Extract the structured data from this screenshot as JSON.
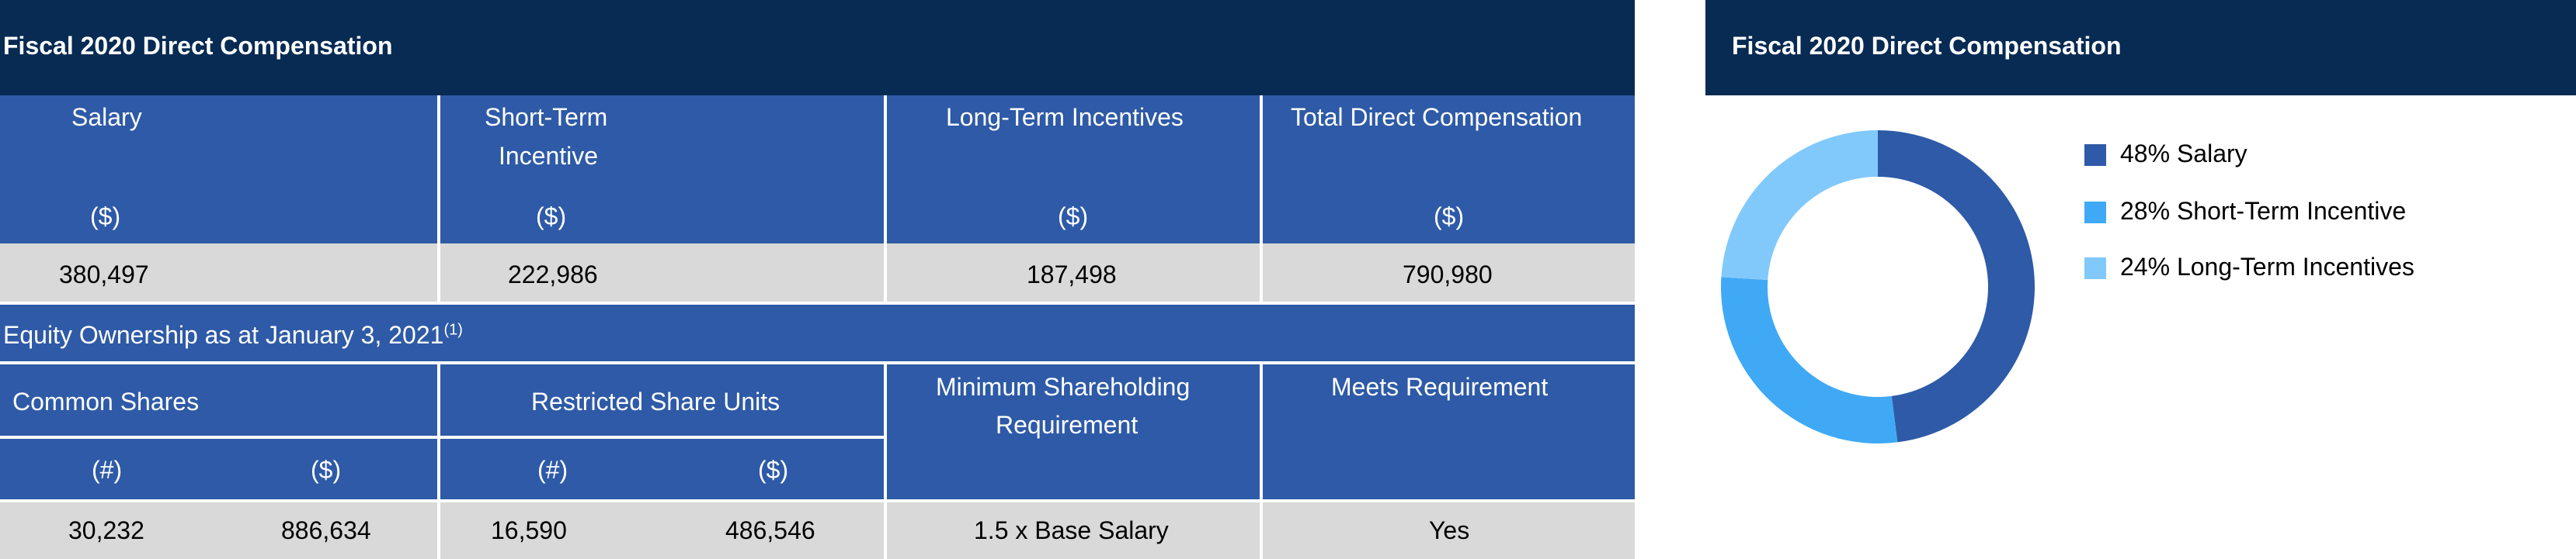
{
  "comp_table": {
    "title": "Fiscal 2020 Direct Compensation",
    "headers": [
      {
        "label": "Salary",
        "unit": "($)"
      },
      {
        "label_line1": "Short-Term",
        "label_line2": "Incentive",
        "unit": "($)"
      },
      {
        "label": "Long-Term Incentives",
        "unit": "($)"
      },
      {
        "label": "Total Direct Compensation",
        "unit": "($)"
      }
    ],
    "values": [
      "380,497",
      "222,986",
      "187,498",
      "790,980"
    ]
  },
  "equity_table": {
    "title": "Equity Ownership as at January 3, 2021",
    "title_footnote": "(1)",
    "group_headers": {
      "common_shares": "Common Shares",
      "restricted_share_units": "Restricted Share Units",
      "min_shareholding_line1": "Minimum Shareholding",
      "min_shareholding_line2": "Requirement",
      "meets_requirement": "Meets Requirement"
    },
    "sub_headers": [
      "(#)",
      "($)",
      "(#)",
      "($)"
    ],
    "values": {
      "common_shares_num": "30,232",
      "common_shares_val": "886,634",
      "rsu_num": "16,590",
      "rsu_val": "486,546",
      "min_shareholding": "1.5 x Base Salary",
      "meets": "Yes"
    }
  },
  "chart_panel": {
    "title": "Fiscal 2020 Direct Compensation"
  },
  "chart_data": {
    "type": "pie",
    "donut": true,
    "title": "Fiscal 2020 Direct Compensation",
    "legend_position": "right",
    "slices": [
      {
        "label": "48% Salary",
        "value": 48,
        "color": "#2e5aa7"
      },
      {
        "label": "28% Short-Term Incentive",
        "value": 28,
        "color": "#3fa9f5"
      },
      {
        "label": "24% Long-Term Incentives",
        "value": 24,
        "color": "#82c9fb"
      }
    ]
  }
}
